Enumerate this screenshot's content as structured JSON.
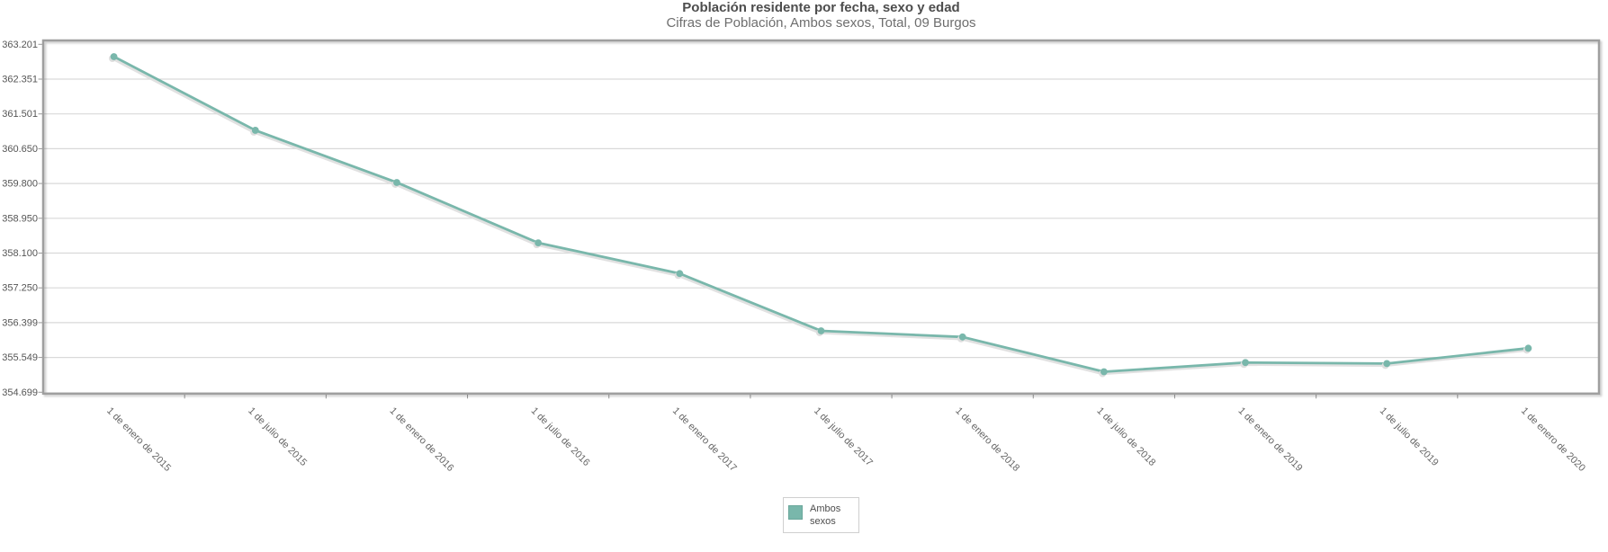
{
  "page": {
    "title": "Población residente por fecha, sexo y edad",
    "subtitle": "Cifras de Población, Ambos sexos, Total, 09 Burgos"
  },
  "legend": {
    "position": "bottom-center",
    "series_label": "Ambos sexos"
  },
  "colors": {
    "series": "#79b7ab",
    "series_shadow": "#dedede",
    "grid": "#d9d9d9",
    "plot_border": "#9f9f9f",
    "tick": "#999999",
    "y_label_text": "#555555",
    "x_label_text": "#666666",
    "legend_swatch_border": "#6aa79b",
    "title_text": "#4d4d4d",
    "subtitle_text": "#6e6e6e"
  },
  "chart_data": {
    "type": "line",
    "title": "Población residente por fecha, sexo y edad",
    "subtitle": "Cifras de Población, Ambos sexos, Total, 09 Burgos",
    "categories": [
      "1 de enero de 2015",
      "1 de julio de 2015",
      "1 de enero de 2016",
      "1 de julio de 2016",
      "1 de enero de 2017",
      "1 de julio de 2017",
      "1 de enero de 2018",
      "1 de julio de 2018",
      "1 de enero de 2019",
      "1 de julio de 2019",
      "1 de enero de 2020"
    ],
    "series": [
      {
        "name": "Ambos sexos",
        "values": [
          362900,
          361100,
          359825,
          358350,
          357600,
          356200,
          356050,
          355200,
          355425,
          355400,
          355775
        ]
      }
    ],
    "ylim": [
      354699,
      363201
    ],
    "y_tick_labels": [
      "363.201",
      "362.351",
      "361.501",
      "360.650",
      "359.800",
      "358.950",
      "358.100",
      "357.250",
      "356.399",
      "355.549",
      "354.699"
    ],
    "grid": "horizontal",
    "legend_position": "bottom-center",
    "x_label_rotation_deg": 45
  }
}
